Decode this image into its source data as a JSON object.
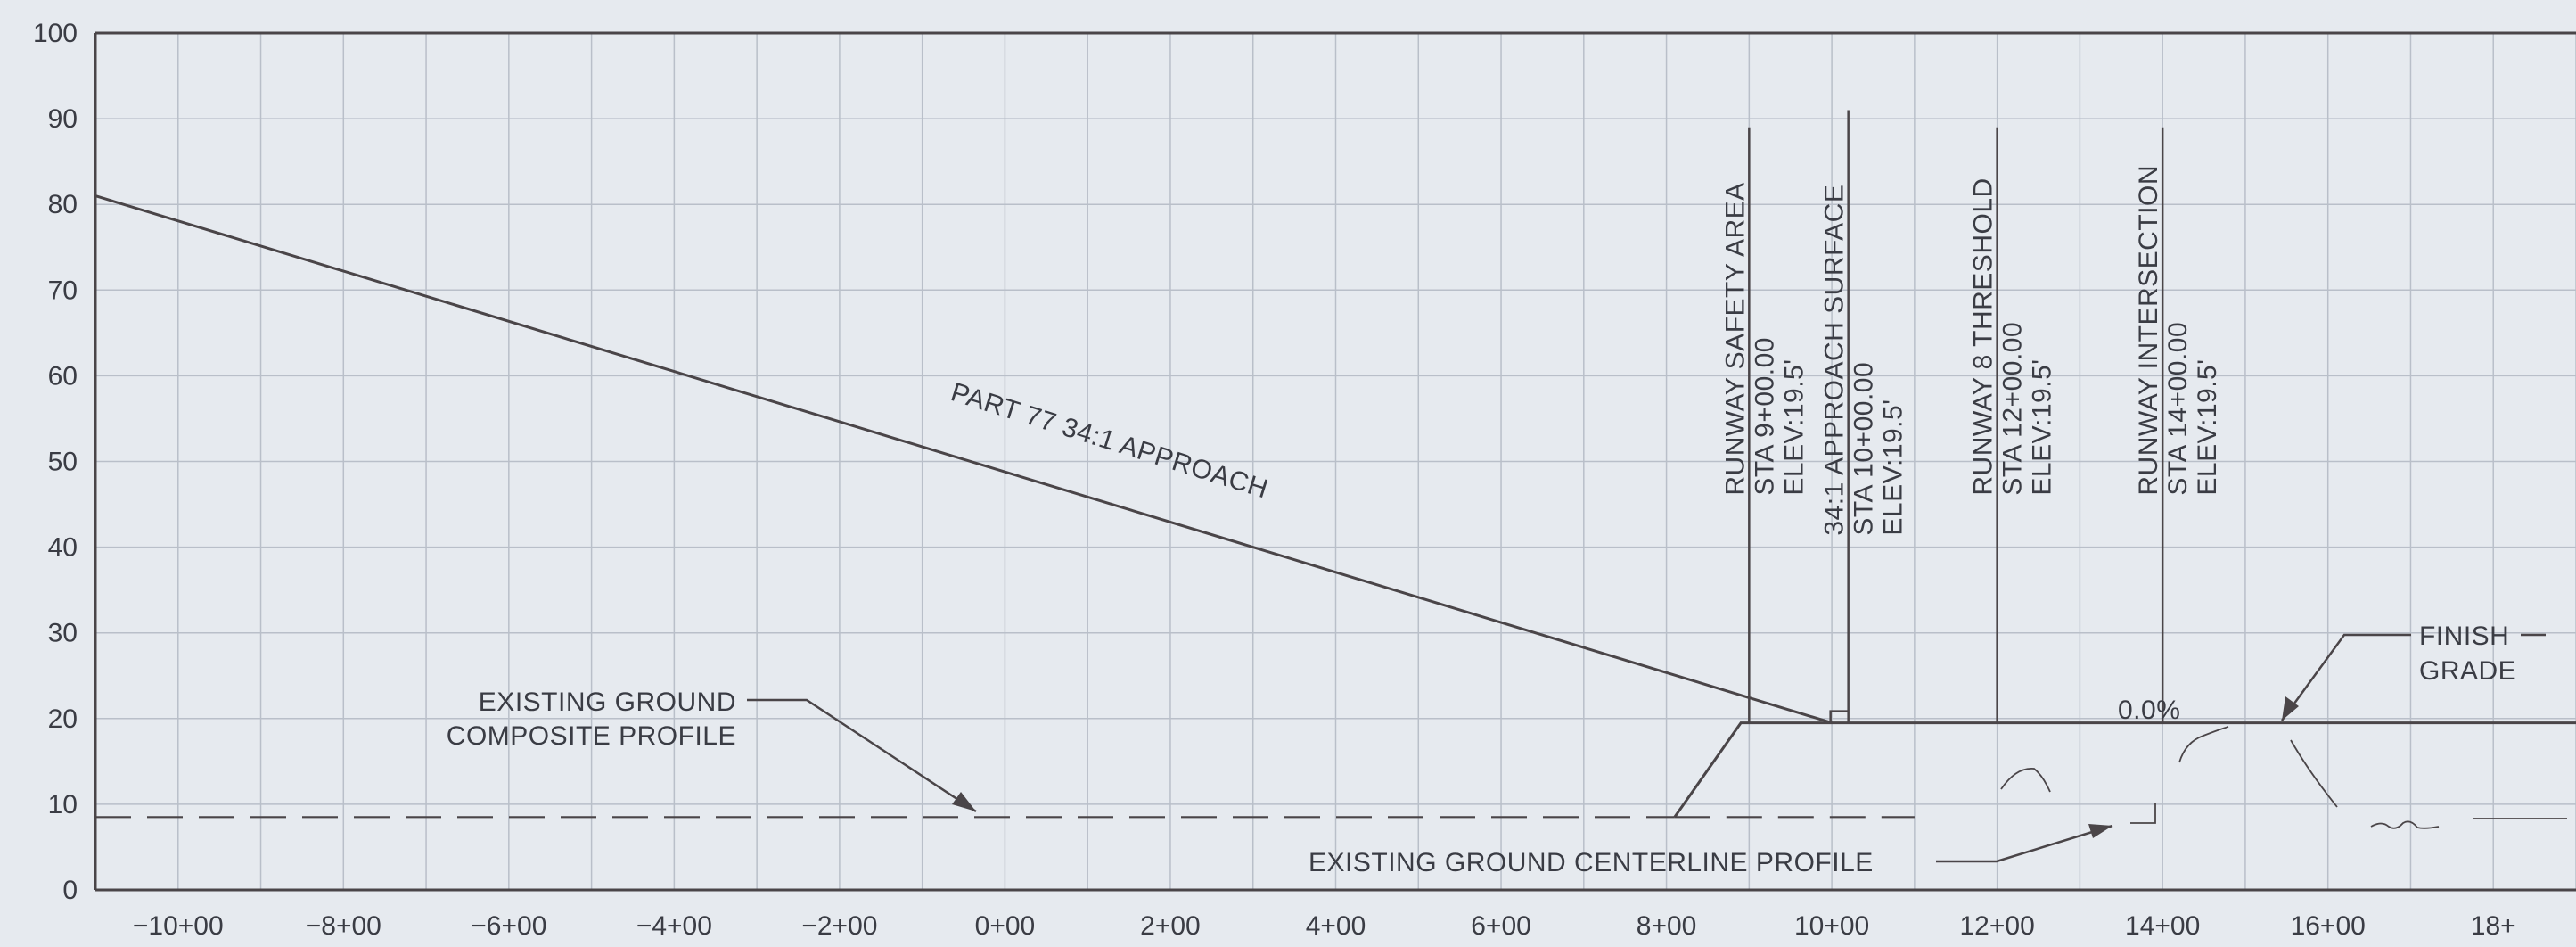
{
  "colors": {
    "background": "#e6eaef",
    "grid": "#b9bfc9",
    "line": "#4a4548",
    "text": "#3a3c44"
  },
  "chart_data": {
    "type": "line",
    "x_unit": "station (100 ft)",
    "y_unit": "elevation (ft)",
    "xlim": [
      -11,
      19
    ],
    "ylim": [
      0,
      100
    ],
    "grid": true,
    "x_tick_values": [
      -10,
      -8,
      -6,
      -4,
      -2,
      0,
      2,
      4,
      6,
      8,
      10,
      12,
      14,
      16,
      18
    ],
    "x_tick_labels": [
      "−10+00",
      "−8+00",
      "−6+00",
      "−4+00",
      "−2+00",
      "0+00",
      "2+00",
      "4+00",
      "6+00",
      "8+00",
      "10+00",
      "12+00",
      "14+00",
      "16+00",
      "18+"
    ],
    "y_ticks": [
      0,
      10,
      20,
      30,
      40,
      50,
      60,
      70,
      80,
      90,
      100
    ],
    "series": [
      {
        "key": "approach",
        "style": "solid",
        "points": [
          [
            -11,
            81
          ],
          [
            10,
            19.5
          ]
        ]
      },
      {
        "key": "finish_grade",
        "style": "solid",
        "points": [
          [
            8.1,
            8.5
          ],
          [
            8.9,
            19.5
          ],
          [
            19,
            19.5
          ]
        ]
      },
      {
        "key": "ground_composite",
        "style": "dashed",
        "points": [
          [
            -11,
            8.5
          ],
          [
            8.1,
            8.5
          ]
        ]
      },
      {
        "key": "ground_centerline",
        "style": "dashed",
        "points": [
          [
            8.1,
            8.5
          ],
          [
            11,
            8.5
          ]
        ]
      }
    ],
    "markers": [
      {
        "x": 9,
        "top": 89,
        "title": "RUNWAY SAFETY AREA",
        "sta": "STA 9+00.00",
        "elev": "ELEV:19.5'"
      },
      {
        "x": 10.2,
        "top": 91,
        "title": "34:1 APPROACH SURFACE",
        "sta": "STA 10+00.00",
        "elev": "ELEV:19.5'"
      },
      {
        "x": 12,
        "top": 89,
        "title": "RUNWAY 8 THRESHOLD",
        "sta": "STA 12+00.00",
        "elev": "ELEV:19.5'"
      },
      {
        "x": 14,
        "top": 89,
        "title": "RUNWAY INTERSECTION",
        "sta": "STA 14+00.00",
        "elev": "ELEV:19.5'"
      }
    ],
    "annotations": {
      "approach_label": "PART 77 34:1 APPROACH",
      "ground_composite_line1": "EXISTING GROUND",
      "ground_composite_line2": "COMPOSITE PROFILE",
      "ground_centerline": "EXISTING GROUND CENTERLINE PROFILE",
      "finish_grade_line1": "FINISH",
      "finish_grade_line2": "GRADE",
      "slope": "0.0%"
    }
  }
}
